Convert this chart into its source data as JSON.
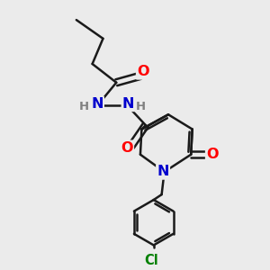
{
  "background_color": "#ebebeb",
  "bond_color": "#1a1a1a",
  "bond_width": 1.8,
  "atom_colors": {
    "O": "#ff0000",
    "N": "#0000cd",
    "Cl": "#008000",
    "H_color": "#808080"
  },
  "font_size": 10.5
}
